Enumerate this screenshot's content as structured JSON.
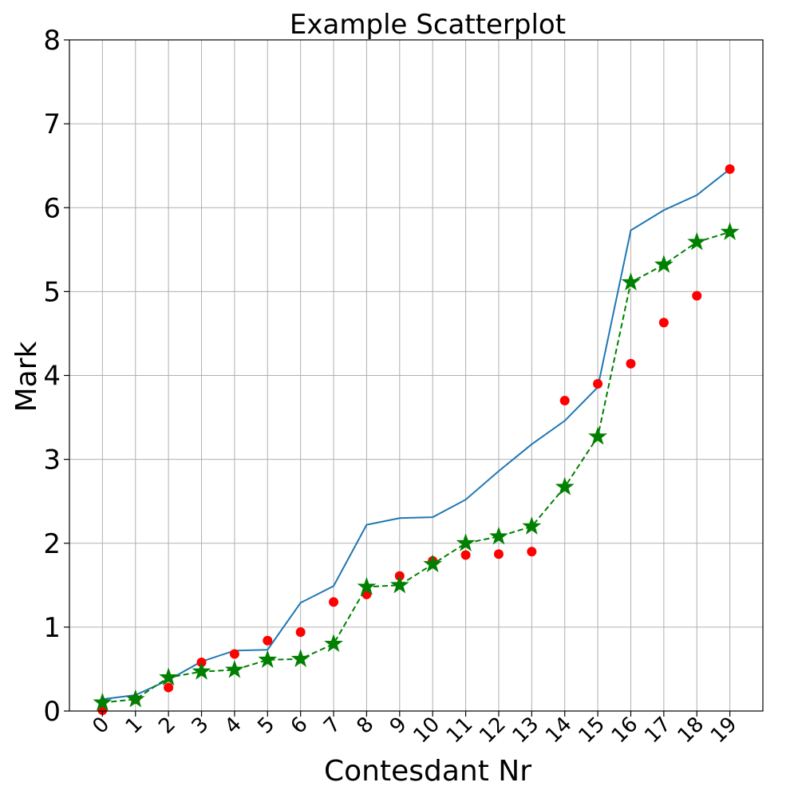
{
  "chart_data": {
    "type": "scatter",
    "title": "Example Scatterplot",
    "xlabel": "Contesdant Nr",
    "ylabel": "Mark",
    "categories": [
      "0",
      "1",
      "2",
      "3",
      "4",
      "5",
      "6",
      "7",
      "8",
      "9",
      "10",
      "11",
      "12",
      "13",
      "14",
      "15",
      "16",
      "17",
      "18",
      "19"
    ],
    "x": [
      0,
      1,
      2,
      3,
      4,
      5,
      6,
      7,
      8,
      9,
      10,
      11,
      12,
      13,
      14,
      15,
      16,
      17,
      18,
      19
    ],
    "xlim": [
      -1,
      20
    ],
    "ylim": [
      0,
      8
    ],
    "yticks": [
      "0",
      "1",
      "2",
      "3",
      "4",
      "5",
      "6",
      "7",
      "8"
    ],
    "grid": true,
    "series": [
      {
        "style": "line",
        "color": "#1f77b4",
        "values": [
          0.14,
          0.19,
          0.37,
          0.59,
          0.72,
          0.73,
          1.29,
          1.49,
          2.22,
          2.3,
          2.31,
          2.52,
          2.86,
          3.18,
          3.46,
          3.86,
          5.73,
          5.97,
          6.15,
          6.46
        ]
      },
      {
        "style": "scatter",
        "marker": "circle",
        "color": "#ff0000",
        "values": [
          0.01,
          0.14,
          0.28,
          0.58,
          0.68,
          0.84,
          0.94,
          1.3,
          1.39,
          1.61,
          1.79,
          1.86,
          1.87,
          1.9,
          3.7,
          3.9,
          4.14,
          4.63,
          4.95,
          6.46
        ]
      },
      {
        "style": "dashed-line-star",
        "marker": "star",
        "color": "#008000",
        "values": [
          0.1,
          0.14,
          0.4,
          0.47,
          0.49,
          0.61,
          0.62,
          0.8,
          1.48,
          1.5,
          1.75,
          2.0,
          2.08,
          2.2,
          2.67,
          3.27,
          5.11,
          5.32,
          5.59,
          5.71
        ]
      }
    ]
  }
}
